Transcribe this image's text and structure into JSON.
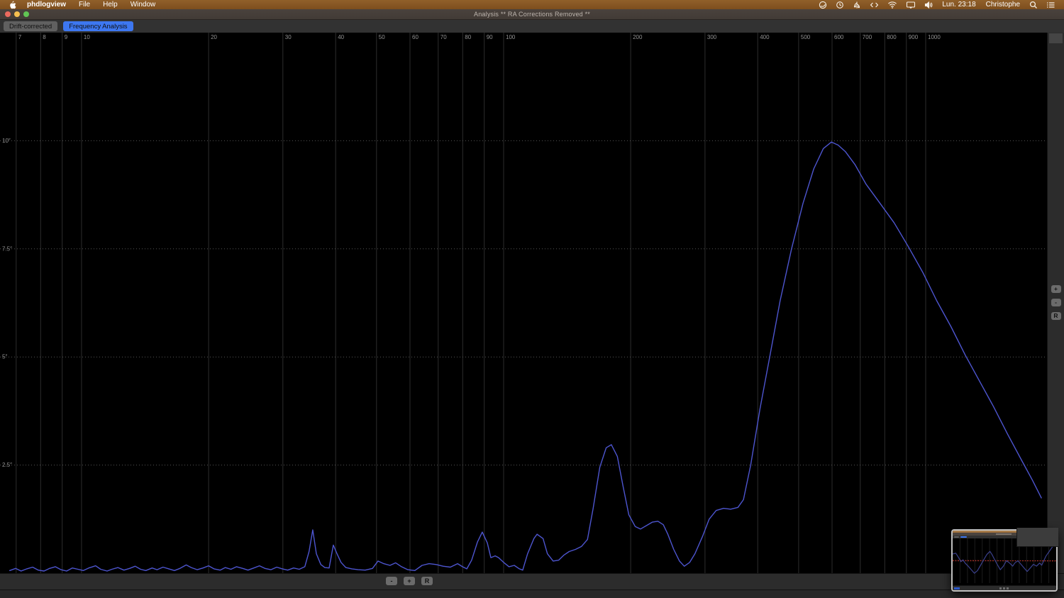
{
  "menu_bar": {
    "apple_icon": "apple-logo-icon",
    "items": [
      "phdlogview",
      "File",
      "Help",
      "Window"
    ],
    "status_icons": [
      "parallels-icon",
      "time-machine-icon",
      "usb-icon",
      "code-brackets-icon",
      "wifi-icon",
      "display-mirroring-icon",
      "volume-icon"
    ],
    "time": "Lun. 23:18",
    "user": "Christophe",
    "trailing_icons": [
      "search-icon",
      "control-center-icon"
    ]
  },
  "window": {
    "title": "Analysis ** RA Corrections Removed **",
    "traffic_lights": {
      "close": "#ec6a5e",
      "minimize": "#f5bf4f",
      "zoom": "#61c554"
    }
  },
  "tabs": [
    {
      "label": "Drift-corrected",
      "active": false
    },
    {
      "label": "Frequency Analysis",
      "active": true
    }
  ],
  "controls": {
    "bottom": [
      "-",
      "+",
      "R"
    ],
    "right": [
      "+",
      "-",
      "R"
    ]
  },
  "colors": {
    "accent_blue": "#3d77f0",
    "curve_blue": "#4d55cf",
    "menubar_brown": "#8a5a24",
    "grid_gray": "#2d2d2d",
    "tick_text": "#929292"
  },
  "chart_data": {
    "type": "line",
    "title": "",
    "xlabel": "",
    "ylabel": "",
    "x_scale": "log",
    "x_range": [
      6.41,
      1938
    ],
    "y_range": [
      0,
      12.5
    ],
    "grid": true,
    "x_ticks": [
      7,
      8,
      9,
      10,
      20,
      30,
      40,
      50,
      60,
      70,
      80,
      90,
      100,
      200,
      300,
      400,
      500,
      600,
      700,
      800,
      900,
      1000
    ],
    "y_ticks": [
      {
        "value": 2.5,
        "label": "2.5\""
      },
      {
        "value": 5,
        "label": "5\""
      },
      {
        "value": 7.5,
        "label": "7.5\""
      },
      {
        "value": 10,
        "label": "10\""
      }
    ],
    "grid_color": "#2d2d2d",
    "dotted_color": "#555555",
    "line_color": "#4d55cf",
    "points": [
      [
        6.76,
        0.06
      ],
      [
        6.98,
        0.11
      ],
      [
        7.19,
        0.05
      ],
      [
        7.42,
        0.1
      ],
      [
        7.66,
        0.14
      ],
      [
        7.9,
        0.07
      ],
      [
        8.15,
        0.05
      ],
      [
        8.4,
        0.11
      ],
      [
        8.67,
        0.15
      ],
      [
        8.94,
        0.08
      ],
      [
        9.22,
        0.05
      ],
      [
        9.51,
        0.12
      ],
      [
        9.81,
        0.09
      ],
      [
        10.1,
        0.06
      ],
      [
        10.4,
        0.12
      ],
      [
        10.8,
        0.17
      ],
      [
        11.1,
        0.09
      ],
      [
        11.5,
        0.05
      ],
      [
        11.8,
        0.09
      ],
      [
        12.2,
        0.13
      ],
      [
        12.6,
        0.07
      ],
      [
        13.0,
        0.11
      ],
      [
        13.4,
        0.16
      ],
      [
        13.8,
        0.09
      ],
      [
        14.2,
        0.06
      ],
      [
        14.7,
        0.12
      ],
      [
        15.1,
        0.08
      ],
      [
        15.6,
        0.14
      ],
      [
        16.1,
        0.1
      ],
      [
        16.6,
        0.06
      ],
      [
        17.1,
        0.11
      ],
      [
        17.7,
        0.19
      ],
      [
        18.2,
        0.13
      ],
      [
        18.8,
        0.08
      ],
      [
        19.4,
        0.12
      ],
      [
        20.0,
        0.17
      ],
      [
        20.6,
        0.1
      ],
      [
        21.3,
        0.07
      ],
      [
        21.9,
        0.13
      ],
      [
        22.6,
        0.09
      ],
      [
        23.3,
        0.15
      ],
      [
        24.1,
        0.11
      ],
      [
        24.8,
        0.07
      ],
      [
        25.6,
        0.12
      ],
      [
        26.4,
        0.17
      ],
      [
        27.2,
        0.11
      ],
      [
        28.1,
        0.08
      ],
      [
        29.0,
        0.14
      ],
      [
        29.9,
        0.1
      ],
      [
        30.8,
        0.07
      ],
      [
        31.8,
        0.12
      ],
      [
        32.8,
        0.09
      ],
      [
        33.8,
        0.15
      ],
      [
        34.6,
        0.5
      ],
      [
        35.3,
        1.0
      ],
      [
        36.0,
        0.45
      ],
      [
        36.9,
        0.2
      ],
      [
        37.7,
        0.13
      ],
      [
        38.6,
        0.12
      ],
      [
        39.5,
        0.65
      ],
      [
        40.3,
        0.45
      ],
      [
        41.2,
        0.25
      ],
      [
        42.3,
        0.13
      ],
      [
        43.7,
        0.1
      ],
      [
        45.2,
        0.08
      ],
      [
        47.0,
        0.07
      ],
      [
        48.9,
        0.11
      ],
      [
        50.4,
        0.28
      ],
      [
        52.0,
        0.22
      ],
      [
        53.8,
        0.18
      ],
      [
        55.5,
        0.24
      ],
      [
        57.3,
        0.15
      ],
      [
        59.3,
        0.08
      ],
      [
        61.6,
        0.06
      ],
      [
        64.1,
        0.18
      ],
      [
        66.6,
        0.22
      ],
      [
        69.2,
        0.2
      ],
      [
        71.9,
        0.16
      ],
      [
        74.8,
        0.14
      ],
      [
        77.8,
        0.22
      ],
      [
        79.9,
        0.15
      ],
      [
        81.8,
        0.1
      ],
      [
        84.0,
        0.3
      ],
      [
        86.7,
        0.72
      ],
      [
        89.0,
        0.95
      ],
      [
        91.5,
        0.7
      ],
      [
        93.3,
        0.36
      ],
      [
        95.5,
        0.4
      ],
      [
        97.3,
        0.36
      ],
      [
        100,
        0.25
      ],
      [
        103,
        0.15
      ],
      [
        106,
        0.18
      ],
      [
        109,
        0.1
      ],
      [
        111,
        0.07
      ],
      [
        114,
        0.45
      ],
      [
        118,
        0.8
      ],
      [
        120,
        0.9
      ],
      [
        124,
        0.8
      ],
      [
        127,
        0.45
      ],
      [
        131,
        0.28
      ],
      [
        135,
        0.3
      ],
      [
        139,
        0.42
      ],
      [
        143,
        0.5
      ],
      [
        148,
        0.55
      ],
      [
        153,
        0.62
      ],
      [
        158,
        0.78
      ],
      [
        163,
        1.5
      ],
      [
        169,
        2.45
      ],
      [
        175,
        2.9
      ],
      [
        180,
        2.97
      ],
      [
        186,
        2.7
      ],
      [
        192,
        2.0
      ],
      [
        198,
        1.35
      ],
      [
        205,
        1.08
      ],
      [
        211,
        1.02
      ],
      [
        218,
        1.1
      ],
      [
        225,
        1.18
      ],
      [
        232,
        1.2
      ],
      [
        239,
        1.12
      ],
      [
        245,
        0.9
      ],
      [
        253,
        0.55
      ],
      [
        261,
        0.28
      ],
      [
        268,
        0.16
      ],
      [
        276,
        0.25
      ],
      [
        284,
        0.45
      ],
      [
        296,
        0.85
      ],
      [
        307,
        1.25
      ],
      [
        319,
        1.45
      ],
      [
        332,
        1.5
      ],
      [
        345,
        1.48
      ],
      [
        359,
        1.52
      ],
      [
        370,
        1.7
      ],
      [
        385,
        2.5
      ],
      [
        405,
        3.8
      ],
      [
        427,
        5.0
      ],
      [
        452,
        6.3
      ],
      [
        481,
        7.5
      ],
      [
        512,
        8.55
      ],
      [
        543,
        9.35
      ],
      [
        572,
        9.82
      ],
      [
        598,
        9.97
      ],
      [
        620,
        9.9
      ],
      [
        645,
        9.75
      ],
      [
        680,
        9.45
      ],
      [
        722,
        9.0
      ],
      [
        780,
        8.55
      ],
      [
        842,
        8.1
      ],
      [
        910,
        7.55
      ],
      [
        985,
        6.95
      ],
      [
        1062,
        6.3
      ],
      [
        1148,
        5.7
      ],
      [
        1240,
        5.05
      ],
      [
        1340,
        4.45
      ],
      [
        1448,
        3.85
      ],
      [
        1562,
        3.22
      ],
      [
        1690,
        2.6
      ],
      [
        1790,
        2.15
      ],
      [
        1880,
        1.74
      ]
    ]
  },
  "thumbnail": {
    "description": "miniature window preview of drift-corrected chart",
    "line_color": "#3b418e",
    "red_line_color": "#a03028",
    "red_line_y": 0.5,
    "series": [
      [
        0,
        0.35
      ],
      [
        0.03,
        0.33
      ],
      [
        0.05,
        0.4
      ],
      [
        0.08,
        0.52
      ],
      [
        0.1,
        0.48
      ],
      [
        0.12,
        0.55
      ],
      [
        0.15,
        0.62
      ],
      [
        0.18,
        0.7
      ],
      [
        0.21,
        0.78
      ],
      [
        0.24,
        0.72
      ],
      [
        0.27,
        0.6
      ],
      [
        0.3,
        0.48
      ],
      [
        0.33,
        0.36
      ],
      [
        0.36,
        0.29
      ],
      [
        0.38,
        0.36
      ],
      [
        0.4,
        0.45
      ],
      [
        0.43,
        0.58
      ],
      [
        0.46,
        0.7
      ],
      [
        0.49,
        0.62
      ],
      [
        0.52,
        0.5
      ],
      [
        0.55,
        0.55
      ],
      [
        0.58,
        0.62
      ],
      [
        0.6,
        0.55
      ],
      [
        0.63,
        0.5
      ],
      [
        0.66,
        0.58
      ],
      [
        0.69,
        0.66
      ],
      [
        0.72,
        0.74
      ],
      [
        0.75,
        0.66
      ],
      [
        0.78,
        0.58
      ],
      [
        0.81,
        0.62
      ],
      [
        0.84,
        0.55
      ],
      [
        0.86,
        0.6
      ],
      [
        0.88,
        0.5
      ],
      [
        0.9,
        0.4
      ],
      [
        0.93,
        0.3
      ],
      [
        0.96,
        0.2
      ],
      [
        0.98,
        0.14
      ],
      [
        1,
        0.1
      ]
    ]
  }
}
